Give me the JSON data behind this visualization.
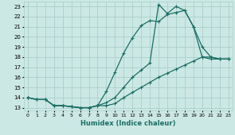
{
  "xlabel": "Humidex (Indice chaleur)",
  "xlim": [
    -0.5,
    23.5
  ],
  "ylim": [
    12.7,
    23.5
  ],
  "yticks": [
    13,
    14,
    15,
    16,
    17,
    18,
    19,
    20,
    21,
    22,
    23
  ],
  "xticks": [
    0,
    1,
    2,
    3,
    4,
    5,
    6,
    7,
    8,
    9,
    10,
    11,
    12,
    13,
    14,
    15,
    16,
    17,
    18,
    19,
    20,
    21,
    22,
    23
  ],
  "bg_color": "#cce8e4",
  "grid_color": "#aacfca",
  "line_color": "#1a6e65",
  "line1_y": [
    14.0,
    13.8,
    13.8,
    13.2,
    13.2,
    13.1,
    13.0,
    13.0,
    13.2,
    14.6,
    16.5,
    18.4,
    19.9,
    21.1,
    21.6,
    21.5,
    22.2,
    22.4,
    22.6,
    21.0,
    19.0,
    18.0,
    17.8,
    17.8
  ],
  "line2_y": [
    14.0,
    13.8,
    13.8,
    13.2,
    13.2,
    13.1,
    13.0,
    13.0,
    13.2,
    13.5,
    14.0,
    15.0,
    16.0,
    16.7,
    17.4,
    23.2,
    22.3,
    23.0,
    22.6,
    21.0,
    18.0,
    17.8,
    17.8,
    17.8
  ],
  "line3_y": [
    14.0,
    13.8,
    13.8,
    13.2,
    13.2,
    13.1,
    13.0,
    13.0,
    13.2,
    13.2,
    13.4,
    14.0,
    14.5,
    15.0,
    15.5,
    16.0,
    16.4,
    16.8,
    17.2,
    17.6,
    18.0,
    18.0,
    17.8,
    17.8
  ]
}
